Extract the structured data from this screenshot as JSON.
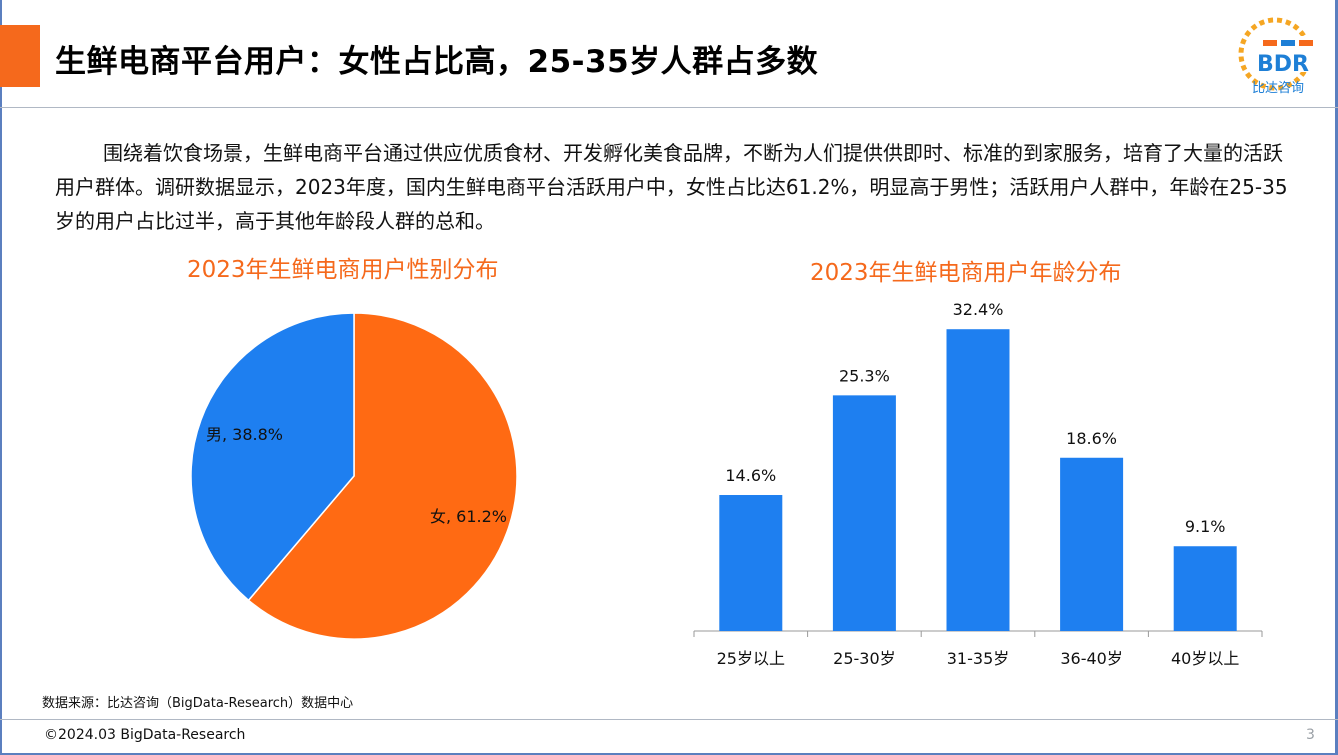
{
  "header": {
    "title": "生鲜电商平台用户：女性占比高，25-35岁人群占多数",
    "logo_text": "BDR",
    "logo_subtext": "比达咨询"
  },
  "intro": "围绕着饮食场景，生鲜电商平台通过供应优质食材、开发孵化美食品牌，不断为人们提供供即时、标准的到家服务，培育了大量的活跃用户群体。调研数据显示，2023年度，国内生鲜电商平台活跃用户中，女性占比达61.2%，明显高于男性；活跃用户人群中，年龄在25-35岁的用户占比过半，高于其他年龄段人群的总和。",
  "colors": {
    "accent": "#f5691c",
    "pie_female": "#ff6a13",
    "pie_male": "#1e7ff0",
    "bar": "#1e7ff0"
  },
  "chart_data": [
    {
      "type": "pie",
      "title": "2023年生鲜电商用户性别分布",
      "categories": [
        "女",
        "男"
      ],
      "values": [
        61.2,
        38.8
      ],
      "labels": [
        "女, 61.2%",
        "男, 38.8%"
      ],
      "unit": "%"
    },
    {
      "type": "bar",
      "title": "2023年生鲜电商用户年龄分布",
      "categories": [
        "25岁以上",
        "25-30岁",
        "31-35岁",
        "36-40岁",
        "40岁以上"
      ],
      "values": [
        14.6,
        25.3,
        32.4,
        18.6,
        9.1
      ],
      "labels": [
        "14.6%",
        "25.3%",
        "32.4%",
        "18.6%",
        "9.1%"
      ],
      "unit": "%",
      "ylim": [
        0,
        35
      ],
      "grid": false
    }
  ],
  "footer": {
    "source": "数据来源：比达咨询（BigData-Research）数据中心",
    "copyright": "©2024.03 BigData-Research",
    "page_number": "3"
  }
}
